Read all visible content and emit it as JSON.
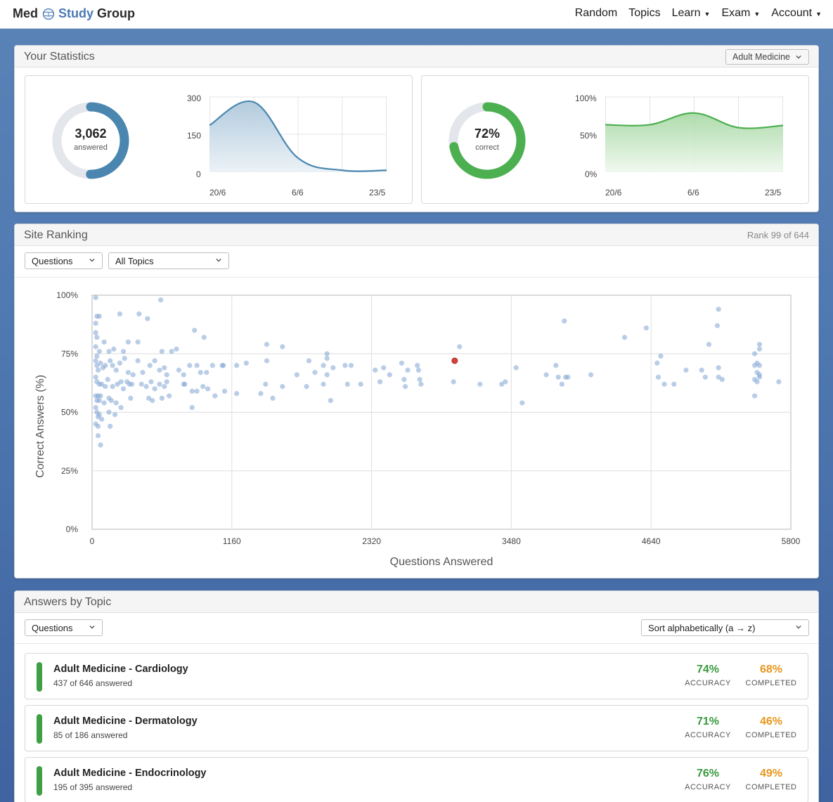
{
  "brand": {
    "part1": "Med",
    "part2": "Study",
    "part3": "Group"
  },
  "nav": [
    {
      "label": "Random",
      "dropdown": false
    },
    {
      "label": "Topics",
      "dropdown": false
    },
    {
      "label": "Learn",
      "dropdown": true
    },
    {
      "label": "Exam",
      "dropdown": true
    },
    {
      "label": "Account",
      "dropdown": true
    }
  ],
  "stats": {
    "title": "Your Statistics",
    "selected_topic": "Adult Medicine",
    "answered": {
      "value": "3,062",
      "label": "answered",
      "fraction": 0.5,
      "chart": {
        "yticks": [
          "300",
          "150",
          "0"
        ],
        "xticks": [
          "20/6",
          "6/6",
          "23/5"
        ],
        "dates": [
          "20/6",
          "13/6",
          "6/6",
          "30/5",
          "23/5"
        ],
        "values": [
          190,
          285,
          55,
          5,
          5
        ],
        "ylim": [
          0,
          300
        ]
      }
    },
    "correct": {
      "value": "72%",
      "label": "correct",
      "fraction": 0.72,
      "chart": {
        "yticks": [
          "100%",
          "50%",
          "0%"
        ],
        "xticks": [
          "20/6",
          "6/6",
          "23/5"
        ],
        "dates": [
          "20/6",
          "13/6",
          "6/6",
          "30/5",
          "23/5"
        ],
        "values": [
          64,
          64,
          80,
          60,
          63
        ],
        "ylim": [
          0,
          100
        ]
      }
    }
  },
  "ranking": {
    "title": "Site Ranking",
    "rank_text": "Rank 99 of 644",
    "filter_metric": "Questions",
    "filter_topic": "All Topics"
  },
  "chart_data": {
    "type": "scatter",
    "xlabel": "Questions Answered",
    "ylabel": "Correct Answers (%)",
    "xlim": [
      0,
      5800
    ],
    "ylim": [
      0,
      100
    ],
    "xticks": [
      0,
      1160,
      2320,
      3480,
      4640,
      5800
    ],
    "yticks": [
      "0%",
      "25%",
      "50%",
      "75%",
      "100%"
    ],
    "grid": true,
    "series": [
      {
        "color": "#7fa4d3",
        "points": [
          [
            30,
            99
          ],
          [
            40,
            91
          ],
          [
            60,
            91
          ],
          [
            230,
            92
          ],
          [
            390,
            92
          ],
          [
            460,
            90
          ],
          [
            570,
            98
          ],
          [
            30,
            88
          ],
          [
            30,
            84
          ],
          [
            40,
            82
          ],
          [
            30,
            78
          ],
          [
            40,
            74
          ],
          [
            60,
            76
          ],
          [
            100,
            80
          ],
          [
            140,
            76
          ],
          [
            180,
            77
          ],
          [
            260,
            76
          ],
          [
            300,
            80
          ],
          [
            380,
            80
          ],
          [
            580,
            76
          ],
          [
            660,
            76
          ],
          [
            700,
            77
          ],
          [
            850,
            85
          ],
          [
            930,
            82
          ],
          [
            30,
            72
          ],
          [
            40,
            70
          ],
          [
            50,
            68
          ],
          [
            70,
            71
          ],
          [
            90,
            69
          ],
          [
            110,
            70
          ],
          [
            150,
            72
          ],
          [
            170,
            70
          ],
          [
            200,
            68
          ],
          [
            230,
            71
          ],
          [
            270,
            73
          ],
          [
            300,
            67
          ],
          [
            340,
            66
          ],
          [
            380,
            72
          ],
          [
            420,
            67
          ],
          [
            480,
            70
          ],
          [
            520,
            72
          ],
          [
            560,
            68
          ],
          [
            600,
            69
          ],
          [
            620,
            66
          ],
          [
            720,
            68
          ],
          [
            760,
            66
          ],
          [
            810,
            70
          ],
          [
            870,
            70
          ],
          [
            900,
            67
          ],
          [
            950,
            67
          ],
          [
            1000,
            70
          ],
          [
            1080,
            70
          ],
          [
            1090,
            70
          ],
          [
            30,
            65
          ],
          [
            40,
            63
          ],
          [
            60,
            62
          ],
          [
            80,
            62
          ],
          [
            110,
            61
          ],
          [
            130,
            64
          ],
          [
            170,
            61
          ],
          [
            210,
            62
          ],
          [
            240,
            63
          ],
          [
            260,
            60
          ],
          [
            290,
            63
          ],
          [
            310,
            62
          ],
          [
            330,
            62
          ],
          [
            410,
            62
          ],
          [
            450,
            61
          ],
          [
            490,
            63
          ],
          [
            520,
            60
          ],
          [
            560,
            62
          ],
          [
            600,
            61
          ],
          [
            620,
            63
          ],
          [
            760,
            62
          ],
          [
            770,
            62
          ],
          [
            830,
            59
          ],
          [
            870,
            59
          ],
          [
            920,
            61
          ],
          [
            960,
            60
          ],
          [
            1020,
            57
          ],
          [
            1100,
            59
          ],
          [
            30,
            57
          ],
          [
            40,
            55
          ],
          [
            50,
            57
          ],
          [
            60,
            55
          ],
          [
            70,
            57
          ],
          [
            100,
            54
          ],
          [
            140,
            56
          ],
          [
            160,
            55
          ],
          [
            200,
            54
          ],
          [
            240,
            52
          ],
          [
            320,
            56
          ],
          [
            470,
            56
          ],
          [
            500,
            55
          ],
          [
            580,
            56
          ],
          [
            640,
            57
          ],
          [
            830,
            52
          ],
          [
            30,
            52
          ],
          [
            40,
            50
          ],
          [
            50,
            48
          ],
          [
            60,
            49
          ],
          [
            80,
            47
          ],
          [
            140,
            50
          ],
          [
            190,
            49
          ],
          [
            30,
            45
          ],
          [
            50,
            44
          ],
          [
            150,
            44
          ],
          [
            50,
            40
          ],
          [
            70,
            36
          ],
          [
            1200,
            70
          ],
          [
            1200,
            58
          ],
          [
            1280,
            71
          ],
          [
            1400,
            58
          ],
          [
            1440,
            62
          ],
          [
            1450,
            72
          ],
          [
            1500,
            56
          ],
          [
            1580,
            61
          ],
          [
            1450,
            79
          ],
          [
            1580,
            78
          ],
          [
            1700,
            66
          ],
          [
            1780,
            61
          ],
          [
            1800,
            72
          ],
          [
            1850,
            67
          ],
          [
            1920,
            70
          ],
          [
            1950,
            66
          ],
          [
            1920,
            62
          ],
          [
            1950,
            73
          ],
          [
            1950,
            75
          ],
          [
            2000,
            69
          ],
          [
            2100,
            70
          ],
          [
            2120,
            62
          ],
          [
            2150,
            70
          ],
          [
            2230,
            62
          ],
          [
            1980,
            55
          ],
          [
            2350,
            68
          ],
          [
            2390,
            63
          ],
          [
            2420,
            69
          ],
          [
            2470,
            66
          ],
          [
            2570,
            71
          ],
          [
            2590,
            64
          ],
          [
            2620,
            68
          ],
          [
            2600,
            61
          ],
          [
            2700,
            70
          ],
          [
            2720,
            64
          ],
          [
            2730,
            62
          ],
          [
            2710,
            68
          ],
          [
            3000,
            63
          ],
          [
            3220,
            62
          ],
          [
            3050,
            78
          ],
          [
            3400,
            62
          ],
          [
            3430,
            63
          ],
          [
            3520,
            69
          ],
          [
            3570,
            54
          ],
          [
            3770,
            66
          ],
          [
            3850,
            70
          ],
          [
            3870,
            65
          ],
          [
            3900,
            62
          ],
          [
            3930,
            65
          ],
          [
            3950,
            65
          ],
          [
            3920,
            89
          ],
          [
            4140,
            66
          ],
          [
            4420,
            82
          ],
          [
            4600,
            86
          ],
          [
            4690,
            71
          ],
          [
            4720,
            74
          ],
          [
            4750,
            62
          ],
          [
            4830,
            62
          ],
          [
            4930,
            68
          ],
          [
            5060,
            68
          ],
          [
            5090,
            65
          ],
          [
            5120,
            79
          ],
          [
            5200,
            94
          ],
          [
            5190,
            87
          ],
          [
            5200,
            69
          ],
          [
            5200,
            65
          ],
          [
            5230,
            64
          ],
          [
            5500,
            75
          ],
          [
            5500,
            70
          ],
          [
            5520,
            67
          ],
          [
            5540,
            66
          ],
          [
            5540,
            65
          ],
          [
            5500,
            64
          ],
          [
            5520,
            63
          ],
          [
            5520,
            71
          ],
          [
            5540,
            70
          ],
          [
            5540,
            79
          ],
          [
            5540,
            77
          ],
          [
            5500,
            57
          ],
          [
            5700,
            63
          ],
          [
            4700,
            65
          ]
        ]
      },
      {
        "color": "#d9403a",
        "points": [
          [
            3010,
            72
          ]
        ]
      }
    ]
  },
  "topics": {
    "title": "Answers by Topic",
    "filter_metric": "Questions",
    "sort_label": "Sort alphabetically (a → z)",
    "accuracy_label": "ACCURACY",
    "completed_label": "COMPLETED",
    "items": [
      {
        "name": "Adult Medicine - Cardiology",
        "sub": "437 of 646 answered",
        "accuracy": "74%",
        "completed": "68%"
      },
      {
        "name": "Adult Medicine - Dermatology",
        "sub": "85 of 186 answered",
        "accuracy": "71%",
        "completed": "46%"
      },
      {
        "name": "Adult Medicine - Endocrinology",
        "sub": "195 of 395 answered",
        "accuracy": "76%",
        "completed": "49%"
      }
    ]
  },
  "colors": {
    "accent": "#4a86b0",
    "success": "#4caf50",
    "warning": "#e8961e",
    "highlight_point": "#d9403a"
  }
}
